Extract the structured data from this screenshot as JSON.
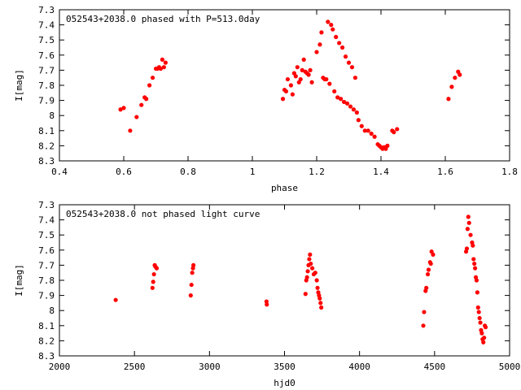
{
  "chart_data": [
    {
      "type": "scatter",
      "title": "052543+2038.0 phased with P=513.0day",
      "xlabel": "phase",
      "ylabel": "I[mag]",
      "xlim": [
        0.4,
        1.8
      ],
      "ylim": [
        7.3,
        8.3
      ],
      "y_inverted": true,
      "xticks": [
        "0.4",
        "0.6",
        "0.8",
        "1",
        "1.2",
        "1.4",
        "1.6",
        "1.8"
      ],
      "yticks": [
        "7.3",
        "7.4",
        "7.5",
        "7.6",
        "7.7",
        "7.8",
        "7.9",
        "8",
        "8.1",
        "8.2",
        "8.3"
      ],
      "marker_color": "#ff0000",
      "grid": false,
      "legend": "none",
      "points": [
        [
          0.59,
          7.96
        ],
        [
          0.6,
          7.95
        ],
        [
          0.62,
          8.1
        ],
        [
          0.64,
          8.01
        ],
        [
          0.655,
          7.93
        ],
        [
          0.665,
          7.88
        ],
        [
          0.67,
          7.89
        ],
        [
          0.68,
          7.8
        ],
        [
          0.69,
          7.75
        ],
        [
          0.7,
          7.69
        ],
        [
          0.705,
          7.69
        ],
        [
          0.71,
          7.68
        ],
        [
          0.715,
          7.69
        ],
        [
          0.72,
          7.63
        ],
        [
          0.725,
          7.68
        ],
        [
          0.73,
          7.65
        ],
        [
          1.095,
          7.89
        ],
        [
          1.1,
          7.83
        ],
        [
          1.105,
          7.84
        ],
        [
          1.11,
          7.76
        ],
        [
          1.12,
          7.8
        ],
        [
          1.125,
          7.86
        ],
        [
          1.13,
          7.72
        ],
        [
          1.135,
          7.74
        ],
        [
          1.14,
          7.68
        ],
        [
          1.145,
          7.78
        ],
        [
          1.15,
          7.76
        ],
        [
          1.155,
          7.7
        ],
        [
          1.16,
          7.63
        ],
        [
          1.165,
          7.71
        ],
        [
          1.17,
          7.72
        ],
        [
          1.175,
          7.73
        ],
        [
          1.18,
          7.7
        ],
        [
          1.185,
          7.78
        ],
        [
          1.2,
          7.58
        ],
        [
          1.21,
          7.53
        ],
        [
          1.215,
          7.45
        ],
        [
          1.22,
          7.75
        ],
        [
          1.225,
          7.76
        ],
        [
          1.23,
          7.76
        ],
        [
          1.235,
          7.38
        ],
        [
          1.24,
          7.79
        ],
        [
          1.245,
          7.4
        ],
        [
          1.25,
          7.43
        ],
        [
          1.255,
          7.84
        ],
        [
          1.26,
          7.48
        ],
        [
          1.265,
          7.88
        ],
        [
          1.27,
          7.52
        ],
        [
          1.275,
          7.89
        ],
        [
          1.28,
          7.55
        ],
        [
          1.285,
          7.91
        ],
        [
          1.29,
          7.61
        ],
        [
          1.295,
          7.92
        ],
        [
          1.3,
          7.65
        ],
        [
          1.305,
          7.94
        ],
        [
          1.31,
          7.68
        ],
        [
          1.315,
          7.96
        ],
        [
          1.32,
          7.75
        ],
        [
          1.325,
          7.98
        ],
        [
          1.33,
          8.03
        ],
        [
          1.34,
          8.07
        ],
        [
          1.35,
          8.1
        ],
        [
          1.36,
          8.1
        ],
        [
          1.37,
          8.12
        ],
        [
          1.38,
          8.14
        ],
        [
          1.39,
          8.19
        ],
        [
          1.395,
          8.2
        ],
        [
          1.4,
          8.21
        ],
        [
          1.405,
          8.22
        ],
        [
          1.41,
          8.21
        ],
        [
          1.415,
          8.22
        ],
        [
          1.42,
          8.2
        ],
        [
          1.435,
          8.1
        ],
        [
          1.44,
          8.11
        ],
        [
          1.45,
          8.09
        ],
        [
          1.61,
          7.89
        ],
        [
          1.62,
          7.81
        ],
        [
          1.63,
          7.75
        ],
        [
          1.64,
          7.71
        ],
        [
          1.645,
          7.73
        ]
      ]
    },
    {
      "type": "scatter",
      "title": "052543+2038.0 not phased light curve",
      "xlabel": "hjd0",
      "ylabel": "I[mag]",
      "xlim": [
        2000,
        5000
      ],
      "ylim": [
        7.3,
        8.3
      ],
      "y_inverted": true,
      "xticks": [
        "2000",
        "2500",
        "3000",
        "3500",
        "4000",
        "4500",
        "5000"
      ],
      "yticks": [
        "7.3",
        "7.4",
        "7.5",
        "7.6",
        "7.7",
        "7.8",
        "7.9",
        "8",
        "8.1",
        "8.2",
        "8.3"
      ],
      "marker_color": "#ff0000",
      "grid": false,
      "legend": "none",
      "points": [
        [
          2375,
          7.93
        ],
        [
          2620,
          7.85
        ],
        [
          2625,
          7.81
        ],
        [
          2630,
          7.76
        ],
        [
          2635,
          7.7
        ],
        [
          2640,
          7.71
        ],
        [
          2648,
          7.72
        ],
        [
          2875,
          7.9
        ],
        [
          2880,
          7.83
        ],
        [
          2885,
          7.75
        ],
        [
          2890,
          7.72
        ],
        [
          2893,
          7.7
        ],
        [
          3380,
          7.94
        ],
        [
          3382,
          7.96
        ],
        [
          3640,
          7.89
        ],
        [
          3645,
          7.8
        ],
        [
          3650,
          7.78
        ],
        [
          3655,
          7.74
        ],
        [
          3660,
          7.7
        ],
        [
          3665,
          7.66
        ],
        [
          3670,
          7.63
        ],
        [
          3675,
          7.69
        ],
        [
          3685,
          7.72
        ],
        [
          3695,
          7.76
        ],
        [
          3705,
          7.75
        ],
        [
          3715,
          7.8
        ],
        [
          3720,
          7.85
        ],
        [
          3725,
          7.88
        ],
        [
          3730,
          7.9
        ],
        [
          3735,
          7.92
        ],
        [
          3740,
          7.95
        ],
        [
          3745,
          7.98
        ],
        [
          4425,
          8.1
        ],
        [
          4430,
          8.01
        ],
        [
          4440,
          7.87
        ],
        [
          4445,
          7.85
        ],
        [
          4455,
          7.76
        ],
        [
          4460,
          7.73
        ],
        [
          4470,
          7.68
        ],
        [
          4475,
          7.69
        ],
        [
          4480,
          7.61
        ],
        [
          4490,
          7.63
        ],
        [
          4710,
          7.61
        ],
        [
          4715,
          7.59
        ],
        [
          4720,
          7.46
        ],
        [
          4725,
          7.38
        ],
        [
          4730,
          7.42
        ],
        [
          4740,
          7.5
        ],
        [
          4750,
          7.55
        ],
        [
          4755,
          7.57
        ],
        [
          4760,
          7.66
        ],
        [
          4765,
          7.69
        ],
        [
          4770,
          7.72
        ],
        [
          4775,
          7.78
        ],
        [
          4780,
          7.8
        ],
        [
          4785,
          7.88
        ],
        [
          4790,
          7.98
        ],
        [
          4795,
          8.01
        ],
        [
          4800,
          8.05
        ],
        [
          4805,
          8.08
        ],
        [
          4810,
          8.13
        ],
        [
          4815,
          8.15
        ],
        [
          4820,
          8.19
        ],
        [
          4825,
          8.21
        ],
        [
          4830,
          8.18
        ],
        [
          4835,
          8.1
        ],
        [
          4840,
          8.11
        ]
      ]
    }
  ]
}
